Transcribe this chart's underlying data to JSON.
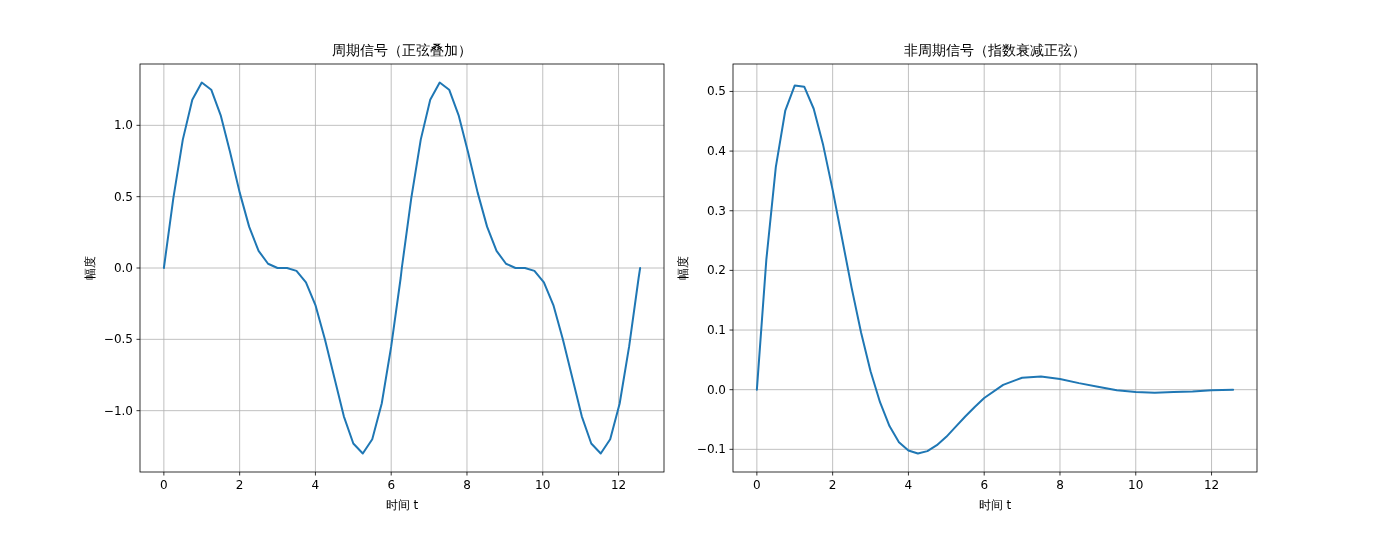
{
  "chart_data": [
    {
      "type": "line",
      "title": "周期信号（正弦叠加）",
      "xlabel": "时间 t",
      "ylabel": "幅度",
      "grid": true,
      "xlim": [
        -0.63,
        13.2
      ],
      "ylim": [
        -1.43,
        1.43
      ],
      "xticks": [
        0,
        2,
        4,
        6,
        8,
        10,
        12
      ],
      "yticks": [
        {
          "value": -1.0,
          "label": "−1.0"
        },
        {
          "value": -0.5,
          "label": "−0.5"
        },
        {
          "value": 0,
          "label": "0.0"
        },
        {
          "value": 0.5,
          "label": "0.5"
        },
        {
          "value": 1.0,
          "label": "1.0"
        }
      ],
      "series": [
        {
          "color": "#1f77b4",
          "x": [
            0,
            0.25,
            0.5,
            0.75,
            1,
            1.25,
            1.5,
            1.75,
            2,
            2.25,
            2.5,
            2.75,
            3,
            3.25,
            3.5,
            3.75,
            4,
            4.25,
            4.5,
            4.75,
            5,
            5.25,
            5.5,
            5.75,
            6,
            6.25,
            6.28,
            6.53,
            6.78,
            7.03,
            7.28,
            7.53,
            7.78,
            8.03,
            8.28,
            8.53,
            8.78,
            9.03,
            9.28,
            9.53,
            9.78,
            10.03,
            10.28,
            10.53,
            10.78,
            11.03,
            11.28,
            11.53,
            11.78,
            12.03,
            12.28,
            12.53,
            12.57
          ],
          "values": [
            0,
            0.49,
            0.9,
            1.18,
            1.3,
            1.25,
            1.07,
            0.81,
            0.53,
            0.29,
            0.12,
            0.03,
            0,
            0,
            -0.02,
            -0.1,
            -0.26,
            -0.5,
            -0.77,
            -1.04,
            -1.23,
            -1.3,
            -1.2,
            -0.95,
            -0.55,
            -0.07,
            0,
            0.49,
            0.9,
            1.18,
            1.3,
            1.25,
            1.07,
            0.81,
            0.53,
            0.29,
            0.12,
            0.03,
            0,
            0,
            -0.02,
            -0.1,
            -0.26,
            -0.5,
            -0.77,
            -1.04,
            -1.23,
            -1.3,
            -1.2,
            -0.95,
            -0.55,
            -0.07,
            0
          ]
        }
      ]
    },
    {
      "type": "line",
      "title": "非周期信号（指数衰减正弦）",
      "xlabel": "时间 t",
      "ylabel": "幅度",
      "grid": true,
      "xlim": [
        -0.63,
        13.2
      ],
      "ylim": [
        -0.138,
        0.546
      ],
      "xticks": [
        0,
        2,
        4,
        6,
        8,
        10,
        12
      ],
      "yticks": [
        {
          "value": -0.1,
          "label": "−0.1"
        },
        {
          "value": 0,
          "label": "0.0"
        },
        {
          "value": 0.1,
          "label": "0.1"
        },
        {
          "value": 0.2,
          "label": "0.2"
        },
        {
          "value": 0.3,
          "label": "0.3"
        },
        {
          "value": 0.4,
          "label": "0.4"
        },
        {
          "value": 0.5,
          "label": "0.5"
        }
      ],
      "series": [
        {
          "color": "#1f77b4",
          "x": [
            0,
            0.25,
            0.5,
            0.75,
            1,
            1.25,
            1.5,
            1.75,
            2,
            2.25,
            2.5,
            2.75,
            3,
            3.25,
            3.5,
            3.75,
            4,
            4.25,
            4.5,
            4.75,
            5,
            5.25,
            5.5,
            5.75,
            6,
            6.5,
            7,
            7.5,
            8,
            8.5,
            9,
            9.5,
            10,
            10.5,
            11,
            11.5,
            12,
            12.57
          ],
          "values": [
            0,
            0.218,
            0.373,
            0.468,
            0.51,
            0.508,
            0.471,
            0.41,
            0.335,
            0.253,
            0.171,
            0.096,
            0.031,
            -0.021,
            -0.061,
            -0.088,
            -0.102,
            -0.107,
            -0.103,
            -0.093,
            -0.079,
            -0.062,
            -0.045,
            -0.029,
            -0.014,
            0.008,
            0.02,
            0.022,
            0.018,
            0.011,
            0.005,
            -0.001,
            -0.004,
            -0.005,
            -0.004,
            -0.003,
            -0.001,
            0
          ]
        }
      ]
    }
  ]
}
